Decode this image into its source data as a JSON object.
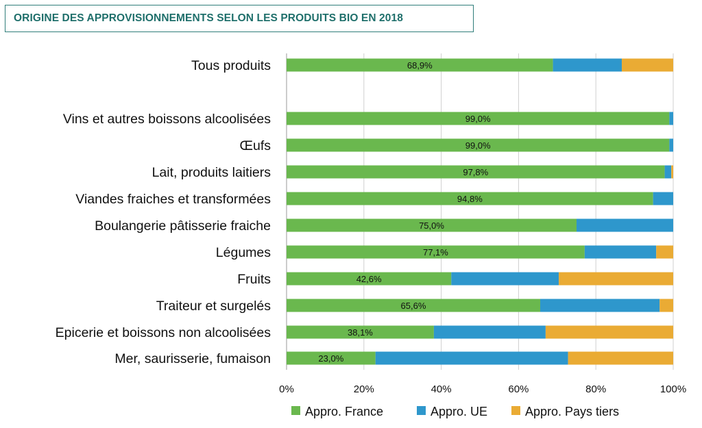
{
  "colors": {
    "france": "#6ab84e",
    "ue": "#2e97cc",
    "pays_tiers": "#eaab34",
    "title": "#1f6f6b",
    "grid": "#cfcfcf"
  },
  "chart_data": {
    "type": "bar",
    "orientation": "horizontal",
    "stacked": true,
    "title": "ORIGINE DES APPROVISIONNEMENTS SELON LES PRODUITS BIO EN 2018",
    "xlim": [
      0,
      100
    ],
    "x_ticks": [
      "0%",
      "20%",
      "40%",
      "60%",
      "80%",
      "100%"
    ],
    "legend_position": "bottom",
    "categories": [
      "Tous produits",
      "Vins et autres boissons alcoolisées",
      "Œufs",
      "Lait, produits laitiers",
      "Viandes fraiches et transformées",
      "Boulangerie pâtisserie fraiche",
      "Légumes",
      "Fruits",
      "Traiteur et surgelés",
      "Epicerie et boissons non alcoolisées",
      "Mer, saurisserie, fumaison"
    ],
    "series": [
      {
        "name": "Appro. France",
        "values": [
          68.9,
          99.0,
          99.0,
          97.8,
          94.8,
          75.0,
          77.1,
          42.6,
          65.6,
          38.1,
          23.0
        ]
      },
      {
        "name": "Appro. UE",
        "values": [
          17.8,
          1.0,
          1.0,
          1.7,
          5.2,
          25.0,
          18.5,
          27.8,
          30.9,
          28.9,
          49.8
        ]
      },
      {
        "name": "Appro. Pays tiers",
        "values": [
          13.3,
          0.0,
          0.0,
          0.5,
          0.0,
          0.0,
          4.4,
          29.6,
          3.5,
          33.0,
          27.2
        ]
      }
    ],
    "data_labels": [
      "68,9%",
      "99,0%",
      "99,0%",
      "97,8%",
      "94,8%",
      "75,0%",
      "77,1%",
      "42,6%",
      "65,6%",
      "38,1%",
      "23,0%"
    ]
  }
}
